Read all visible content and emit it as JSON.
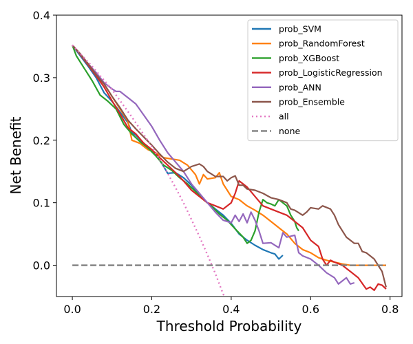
{
  "chart_data": {
    "type": "line",
    "title": "",
    "xlabel": "Threshold Probability",
    "ylabel": "Net Benefit",
    "xlim": [
      -0.04,
      0.83
    ],
    "ylim": [
      -0.05,
      0.4
    ],
    "xticks": [
      0.0,
      0.2,
      0.4,
      0.6,
      0.8
    ],
    "xtick_labels": [
      "0.0",
      "0.2",
      "0.4",
      "0.6",
      "0.8"
    ],
    "yticks": [
      0.0,
      0.1,
      0.2,
      0.3,
      0.4
    ],
    "ytick_labels": [
      "0.0",
      "0.1",
      "0.2",
      "0.3",
      "0.4"
    ],
    "grid": false,
    "legend_position": "top-right",
    "series": [
      {
        "name": "prob_SVM",
        "color": "#1f77b4",
        "style": "solid",
        "points": [
          [
            0.0,
            0.352
          ],
          [
            0.02,
            0.335
          ],
          [
            0.04,
            0.318
          ],
          [
            0.06,
            0.3
          ],
          [
            0.08,
            0.276
          ],
          [
            0.1,
            0.262
          ],
          [
            0.12,
            0.245
          ],
          [
            0.14,
            0.228
          ],
          [
            0.15,
            0.212
          ],
          [
            0.16,
            0.208
          ],
          [
            0.18,
            0.195
          ],
          [
            0.2,
            0.183
          ],
          [
            0.22,
            0.168
          ],
          [
            0.23,
            0.158
          ],
          [
            0.24,
            0.147
          ],
          [
            0.26,
            0.148
          ],
          [
            0.28,
            0.14
          ],
          [
            0.3,
            0.128
          ],
          [
            0.32,
            0.112
          ],
          [
            0.34,
            0.1
          ],
          [
            0.36,
            0.09
          ],
          [
            0.38,
            0.08
          ],
          [
            0.4,
            0.067
          ],
          [
            0.42,
            0.05
          ],
          [
            0.44,
            0.04
          ],
          [
            0.46,
            0.032
          ],
          [
            0.48,
            0.025
          ],
          [
            0.5,
            0.02
          ],
          [
            0.51,
            0.018
          ],
          [
            0.52,
            0.01
          ],
          [
            0.53,
            0.016
          ]
        ]
      },
      {
        "name": "prob_RandomForest",
        "color": "#ff7f0e",
        "style": "solid",
        "points": [
          [
            0.0,
            0.352
          ],
          [
            0.02,
            0.338
          ],
          [
            0.04,
            0.322
          ],
          [
            0.06,
            0.305
          ],
          [
            0.08,
            0.29
          ],
          [
            0.1,
            0.27
          ],
          [
            0.12,
            0.25
          ],
          [
            0.14,
            0.23
          ],
          [
            0.15,
            0.2
          ],
          [
            0.17,
            0.195
          ],
          [
            0.19,
            0.185
          ],
          [
            0.21,
            0.18
          ],
          [
            0.23,
            0.172
          ],
          [
            0.25,
            0.17
          ],
          [
            0.27,
            0.168
          ],
          [
            0.29,
            0.16
          ],
          [
            0.31,
            0.145
          ],
          [
            0.32,
            0.13
          ],
          [
            0.33,
            0.145
          ],
          [
            0.34,
            0.138
          ],
          [
            0.36,
            0.14
          ],
          [
            0.37,
            0.148
          ],
          [
            0.38,
            0.13
          ],
          [
            0.4,
            0.11
          ],
          [
            0.42,
            0.105
          ],
          [
            0.44,
            0.095
          ],
          [
            0.46,
            0.088
          ],
          [
            0.48,
            0.08
          ],
          [
            0.5,
            0.07
          ],
          [
            0.52,
            0.06
          ],
          [
            0.54,
            0.05
          ],
          [
            0.56,
            0.035
          ],
          [
            0.58,
            0.025
          ],
          [
            0.6,
            0.02
          ],
          [
            0.62,
            0.012
          ],
          [
            0.64,
            0.008
          ],
          [
            0.66,
            0.005
          ],
          [
            0.68,
            0.002
          ],
          [
            0.7,
            0.0
          ],
          [
            0.72,
            0.0
          ],
          [
            0.74,
            0.0
          ],
          [
            0.76,
            0.0
          ],
          [
            0.79,
            0.0
          ]
        ]
      },
      {
        "name": "prob_XGBoost",
        "color": "#2ca02c",
        "style": "solid",
        "points": [
          [
            0.0,
            0.352
          ],
          [
            0.01,
            0.335
          ],
          [
            0.03,
            0.315
          ],
          [
            0.05,
            0.295
          ],
          [
            0.07,
            0.272
          ],
          [
            0.09,
            0.262
          ],
          [
            0.11,
            0.25
          ],
          [
            0.13,
            0.225
          ],
          [
            0.15,
            0.21
          ],
          [
            0.17,
            0.198
          ],
          [
            0.19,
            0.188
          ],
          [
            0.21,
            0.175
          ],
          [
            0.23,
            0.16
          ],
          [
            0.25,
            0.152
          ],
          [
            0.27,
            0.14
          ],
          [
            0.29,
            0.13
          ],
          [
            0.31,
            0.118
          ],
          [
            0.33,
            0.105
          ],
          [
            0.35,
            0.095
          ],
          [
            0.37,
            0.082
          ],
          [
            0.39,
            0.072
          ],
          [
            0.41,
            0.058
          ],
          [
            0.43,
            0.045
          ],
          [
            0.44,
            0.035
          ],
          [
            0.45,
            0.04
          ],
          [
            0.46,
            0.055
          ],
          [
            0.47,
            0.085
          ],
          [
            0.48,
            0.105
          ],
          [
            0.49,
            0.1
          ],
          [
            0.5,
            0.098
          ],
          [
            0.51,
            0.095
          ],
          [
            0.52,
            0.105
          ],
          [
            0.53,
            0.1
          ],
          [
            0.54,
            0.095
          ],
          [
            0.55,
            0.08
          ],
          [
            0.56,
            0.07
          ],
          [
            0.565,
            0.06
          ],
          [
            0.57,
            0.055
          ]
        ]
      },
      {
        "name": "prob_LogisticRegression",
        "color": "#d62728",
        "style": "solid",
        "points": [
          [
            0.0,
            0.352
          ],
          [
            0.02,
            0.337
          ],
          [
            0.04,
            0.32
          ],
          [
            0.06,
            0.303
          ],
          [
            0.08,
            0.285
          ],
          [
            0.1,
            0.263
          ],
          [
            0.12,
            0.242
          ],
          [
            0.14,
            0.22
          ],
          [
            0.16,
            0.21
          ],
          [
            0.18,
            0.195
          ],
          [
            0.2,
            0.185
          ],
          [
            0.22,
            0.172
          ],
          [
            0.24,
            0.16
          ],
          [
            0.26,
            0.148
          ],
          [
            0.28,
            0.135
          ],
          [
            0.3,
            0.12
          ],
          [
            0.32,
            0.11
          ],
          [
            0.34,
            0.1
          ],
          [
            0.36,
            0.095
          ],
          [
            0.38,
            0.09
          ],
          [
            0.4,
            0.1
          ],
          [
            0.41,
            0.115
          ],
          [
            0.42,
            0.135
          ],
          [
            0.44,
            0.125
          ],
          [
            0.46,
            0.11
          ],
          [
            0.48,
            0.095
          ],
          [
            0.5,
            0.09
          ],
          [
            0.52,
            0.085
          ],
          [
            0.54,
            0.08
          ],
          [
            0.56,
            0.07
          ],
          [
            0.58,
            0.06
          ],
          [
            0.6,
            0.04
          ],
          [
            0.62,
            0.03
          ],
          [
            0.63,
            0.01
          ],
          [
            0.64,
            0.0
          ],
          [
            0.65,
            0.008
          ],
          [
            0.66,
            0.005
          ],
          [
            0.68,
            0.0
          ],
          [
            0.7,
            -0.01
          ],
          [
            0.72,
            -0.02
          ],
          [
            0.74,
            -0.038
          ],
          [
            0.75,
            -0.035
          ],
          [
            0.76,
            -0.04
          ],
          [
            0.77,
            -0.03
          ],
          [
            0.78,
            -0.032
          ],
          [
            0.79,
            -0.038
          ]
        ]
      },
      {
        "name": "prob_ANN",
        "color": "#9467bd",
        "style": "solid",
        "points": [
          [
            0.0,
            0.352
          ],
          [
            0.02,
            0.338
          ],
          [
            0.04,
            0.322
          ],
          [
            0.06,
            0.308
          ],
          [
            0.08,
            0.292
          ],
          [
            0.1,
            0.282
          ],
          [
            0.11,
            0.278
          ],
          [
            0.12,
            0.278
          ],
          [
            0.14,
            0.268
          ],
          [
            0.16,
            0.258
          ],
          [
            0.18,
            0.24
          ],
          [
            0.2,
            0.222
          ],
          [
            0.22,
            0.2
          ],
          [
            0.24,
            0.18
          ],
          [
            0.26,
            0.165
          ],
          [
            0.28,
            0.15
          ],
          [
            0.3,
            0.13
          ],
          [
            0.32,
            0.115
          ],
          [
            0.34,
            0.1
          ],
          [
            0.36,
            0.085
          ],
          [
            0.38,
            0.072
          ],
          [
            0.4,
            0.068
          ],
          [
            0.41,
            0.08
          ],
          [
            0.42,
            0.07
          ],
          [
            0.43,
            0.082
          ],
          [
            0.44,
            0.068
          ],
          [
            0.45,
            0.085
          ],
          [
            0.46,
            0.072
          ],
          [
            0.47,
            0.055
          ],
          [
            0.48,
            0.035
          ],
          [
            0.5,
            0.036
          ],
          [
            0.52,
            0.028
          ],
          [
            0.53,
            0.052
          ],
          [
            0.54,
            0.045
          ],
          [
            0.56,
            0.048
          ],
          [
            0.57,
            0.02
          ],
          [
            0.58,
            0.015
          ],
          [
            0.6,
            0.01
          ],
          [
            0.62,
            0.0
          ],
          [
            0.64,
            -0.012
          ],
          [
            0.66,
            -0.02
          ],
          [
            0.67,
            -0.03
          ],
          [
            0.68,
            -0.025
          ],
          [
            0.69,
            -0.02
          ],
          [
            0.7,
            -0.03
          ],
          [
            0.71,
            -0.028
          ]
        ]
      },
      {
        "name": "prob_Ensemble",
        "color": "#8c564b",
        "style": "solid",
        "points": [
          [
            0.0,
            0.352
          ],
          [
            0.02,
            0.338
          ],
          [
            0.04,
            0.322
          ],
          [
            0.06,
            0.305
          ],
          [
            0.08,
            0.29
          ],
          [
            0.1,
            0.27
          ],
          [
            0.12,
            0.252
          ],
          [
            0.14,
            0.232
          ],
          [
            0.16,
            0.218
          ],
          [
            0.18,
            0.205
          ],
          [
            0.2,
            0.192
          ],
          [
            0.22,
            0.178
          ],
          [
            0.24,
            0.165
          ],
          [
            0.26,
            0.155
          ],
          [
            0.28,
            0.15
          ],
          [
            0.3,
            0.158
          ],
          [
            0.32,
            0.162
          ],
          [
            0.33,
            0.158
          ],
          [
            0.34,
            0.15
          ],
          [
            0.36,
            0.142
          ],
          [
            0.38,
            0.142
          ],
          [
            0.39,
            0.135
          ],
          [
            0.4,
            0.14
          ],
          [
            0.41,
            0.143
          ],
          [
            0.42,
            0.128
          ],
          [
            0.43,
            0.128
          ],
          [
            0.44,
            0.122
          ],
          [
            0.46,
            0.12
          ],
          [
            0.48,
            0.115
          ],
          [
            0.5,
            0.108
          ],
          [
            0.52,
            0.105
          ],
          [
            0.54,
            0.1
          ],
          [
            0.55,
            0.09
          ],
          [
            0.56,
            0.088
          ],
          [
            0.58,
            0.08
          ],
          [
            0.59,
            0.085
          ],
          [
            0.6,
            0.092
          ],
          [
            0.62,
            0.09
          ],
          [
            0.63,
            0.095
          ],
          [
            0.65,
            0.09
          ],
          [
            0.66,
            0.08
          ],
          [
            0.67,
            0.065
          ],
          [
            0.68,
            0.055
          ],
          [
            0.69,
            0.045
          ],
          [
            0.7,
            0.04
          ],
          [
            0.71,
            0.035
          ],
          [
            0.72,
            0.035
          ],
          [
            0.73,
            0.022
          ],
          [
            0.74,
            0.02
          ],
          [
            0.75,
            0.015
          ],
          [
            0.76,
            0.01
          ],
          [
            0.77,
            0.0
          ],
          [
            0.78,
            -0.01
          ],
          [
            0.79,
            -0.035
          ]
        ]
      },
      {
        "name": "all",
        "color": "#e377c2",
        "style": "dotted",
        "points": [
          [
            0.0,
            0.352
          ],
          [
            0.05,
            0.318
          ],
          [
            0.1,
            0.281
          ],
          [
            0.15,
            0.237
          ],
          [
            0.2,
            0.19
          ],
          [
            0.22,
            0.169
          ],
          [
            0.24,
            0.147
          ],
          [
            0.26,
            0.124
          ],
          [
            0.28,
            0.1
          ],
          [
            0.3,
            0.073
          ],
          [
            0.32,
            0.046
          ],
          [
            0.34,
            0.017
          ],
          [
            0.35,
            0.002
          ],
          [
            0.36,
            -0.013
          ],
          [
            0.37,
            -0.03
          ],
          [
            0.38,
            -0.046
          ],
          [
            0.383,
            -0.05
          ]
        ]
      },
      {
        "name": "none",
        "color": "#7f7f7f",
        "style": "dashed",
        "points": [
          [
            0.0,
            0.0
          ],
          [
            0.79,
            0.0
          ]
        ]
      }
    ]
  }
}
